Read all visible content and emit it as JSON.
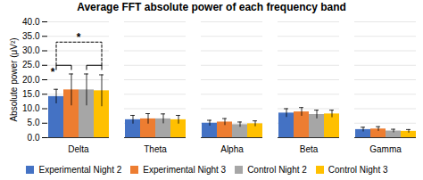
{
  "chart_data": {
    "type": "bar",
    "title": "Average FFT absolute power of each frequency band",
    "ylabel": "Absolute power (μV²)",
    "categories": [
      "Delta",
      "Theta",
      "Alpha",
      "Beta",
      "Gamma"
    ],
    "series": [
      {
        "name": "Experimental Night 2",
        "color": "#4472C4",
        "values": [
          14.2,
          6.2,
          5.0,
          8.5,
          2.8
        ],
        "errors": [
          2.5,
          1.5,
          1.0,
          1.5,
          0.8
        ]
      },
      {
        "name": "Experimental Night 3",
        "color": "#ED7D31",
        "values": [
          16.5,
          6.5,
          5.4,
          8.9,
          3.0
        ],
        "errors": [
          5.5,
          1.8,
          1.2,
          1.5,
          0.8
        ]
      },
      {
        "name": "Control Night 2",
        "color": "#A6A6A6",
        "values": [
          16.5,
          6.5,
          4.5,
          8.0,
          2.3
        ],
        "errors": [
          5.5,
          1.7,
          0.9,
          1.5,
          0.6
        ]
      },
      {
        "name": "Control Night 3",
        "color": "#FFC000",
        "values": [
          16.2,
          6.2,
          4.8,
          8.2,
          2.2
        ],
        "errors": [
          5.5,
          1.5,
          1.0,
          1.3,
          0.6
        ]
      }
    ],
    "ylim": [
      0,
      40
    ],
    "yticks": [
      {
        "value": 0.0,
        "label": "0.0"
      },
      {
        "value": 5.0,
        "label": "5.0"
      },
      {
        "value": 10.0,
        "label": "10.0"
      },
      {
        "value": 15.0,
        "label": "15.0"
      },
      {
        "value": 20.0,
        "label": "20.0"
      },
      {
        "value": 25.0,
        "label": "25.0"
      },
      {
        "value": 30.0,
        "label": "30.0"
      },
      {
        "value": 35.0,
        "label": "35.0"
      },
      {
        "value": 40.0,
        "label": "40.0"
      }
    ],
    "grid": true,
    "legend": "bottom",
    "annotations": [
      {
        "type": "bracket",
        "category": "Delta",
        "from": "Experimental Night 2",
        "to": "Experimental Night 3",
        "y_start": 23.5,
        "y": 25.0,
        "line_style": "solid",
        "text": "*"
      },
      {
        "type": "bracket",
        "category": "Delta",
        "from": "Control Night 2",
        "to": "Control Night 3",
        "y_start": 23.5,
        "y": 25.0,
        "line_style": "solid"
      },
      {
        "type": "bracket",
        "category": "Delta",
        "from": "Experimental Night 2",
        "to": "Control Night 3",
        "y_start": 25.0,
        "y": 33.0,
        "line_style": "dashed",
        "text": "*"
      }
    ]
  }
}
